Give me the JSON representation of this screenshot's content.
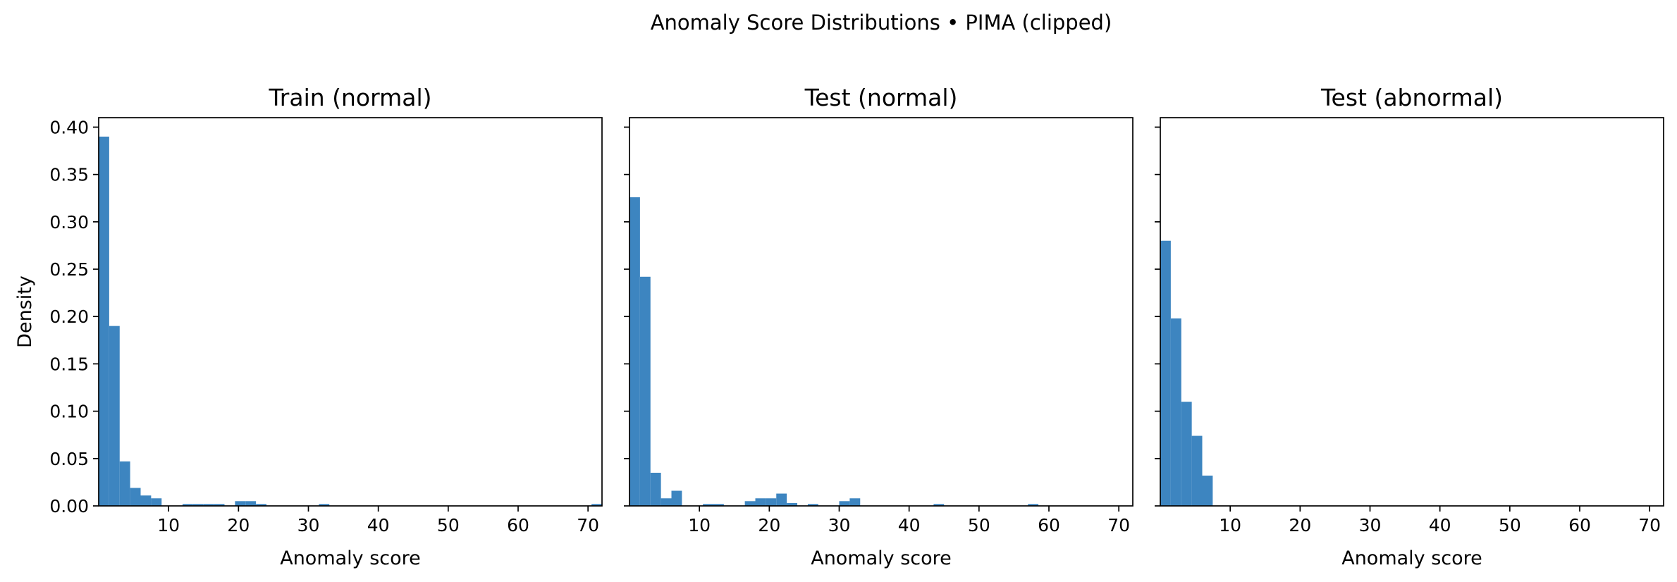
{
  "figure_title": "Anomaly Score Distributions • PIMA (clipped)",
  "chart_data": [
    {
      "type": "histogram",
      "title": "Train (normal)",
      "xlabel": "Anomaly score",
      "ylabel": "Density",
      "xlim": [
        0,
        72
      ],
      "ylim": [
        0,
        0.41
      ],
      "xticks": [
        10,
        20,
        30,
        40,
        50,
        60,
        70
      ],
      "yticks": [
        0.0,
        0.05,
        0.1,
        0.15,
        0.2,
        0.25,
        0.3,
        0.35,
        0.4
      ],
      "ytick_labels": [
        "0.00",
        "0.05",
        "0.10",
        "0.15",
        "0.20",
        "0.25",
        "0.30",
        "0.35",
        "0.40"
      ],
      "bin_width": 1.5,
      "bins": [
        {
          "x0": 0.0,
          "x1": 1.5,
          "density": 0.39
        },
        {
          "x0": 1.5,
          "x1": 3.0,
          "density": 0.19
        },
        {
          "x0": 3.0,
          "x1": 4.5,
          "density": 0.047
        },
        {
          "x0": 4.5,
          "x1": 6.0,
          "density": 0.019
        },
        {
          "x0": 6.0,
          "x1": 7.5,
          "density": 0.011
        },
        {
          "x0": 7.5,
          "x1": 9.0,
          "density": 0.008
        },
        {
          "x0": 12.0,
          "x1": 13.5,
          "density": 0.002
        },
        {
          "x0": 13.5,
          "x1": 15.0,
          "density": 0.002
        },
        {
          "x0": 15.0,
          "x1": 16.5,
          "density": 0.002
        },
        {
          "x0": 16.5,
          "x1": 18.0,
          "density": 0.002
        },
        {
          "x0": 19.5,
          "x1": 21.0,
          "density": 0.005
        },
        {
          "x0": 21.0,
          "x1": 22.5,
          "density": 0.005
        },
        {
          "x0": 22.5,
          "x1": 24.0,
          "density": 0.002
        },
        {
          "x0": 31.5,
          "x1": 33.0,
          "density": 0.002
        },
        {
          "x0": 70.5,
          "x1": 72.0,
          "density": 0.002
        }
      ]
    },
    {
      "type": "histogram",
      "title": "Test (normal)",
      "xlabel": "Anomaly score",
      "xlim": [
        0,
        72
      ],
      "ylim": [
        0,
        0.41
      ],
      "xticks": [
        10,
        20,
        30,
        40,
        50,
        60,
        70
      ],
      "bin_width": 1.5,
      "bins": [
        {
          "x0": 0.0,
          "x1": 1.5,
          "density": 0.326
        },
        {
          "x0": 1.5,
          "x1": 3.0,
          "density": 0.242
        },
        {
          "x0": 3.0,
          "x1": 4.5,
          "density": 0.035
        },
        {
          "x0": 4.5,
          "x1": 6.0,
          "density": 0.008
        },
        {
          "x0": 6.0,
          "x1": 7.5,
          "density": 0.016
        },
        {
          "x0": 10.5,
          "x1": 12.0,
          "density": 0.002
        },
        {
          "x0": 12.0,
          "x1": 13.5,
          "density": 0.002
        },
        {
          "x0": 16.5,
          "x1": 18.0,
          "density": 0.005
        },
        {
          "x0": 18.0,
          "x1": 19.5,
          "density": 0.008
        },
        {
          "x0": 19.5,
          "x1": 21.0,
          "density": 0.008
        },
        {
          "x0": 21.0,
          "x1": 22.5,
          "density": 0.013
        },
        {
          "x0": 22.5,
          "x1": 24.0,
          "density": 0.003
        },
        {
          "x0": 25.5,
          "x1": 27.0,
          "density": 0.002
        },
        {
          "x0": 30.0,
          "x1": 31.5,
          "density": 0.005
        },
        {
          "x0": 31.5,
          "x1": 33.0,
          "density": 0.008
        },
        {
          "x0": 43.5,
          "x1": 45.0,
          "density": 0.002
        },
        {
          "x0": 57.0,
          "x1": 58.5,
          "density": 0.002
        }
      ]
    },
    {
      "type": "histogram",
      "title": "Test (abnormal)",
      "xlabel": "Anomaly score",
      "xlim": [
        0,
        72
      ],
      "ylim": [
        0,
        0.41
      ],
      "xticks": [
        10,
        20,
        30,
        40,
        50,
        60,
        70
      ],
      "bin_width": 1.5,
      "bins": [
        {
          "x0": 0.0,
          "x1": 1.5,
          "density": 0.28
        },
        {
          "x0": 1.5,
          "x1": 3.0,
          "density": 0.198
        },
        {
          "x0": 3.0,
          "x1": 4.5,
          "density": 0.11
        },
        {
          "x0": 4.5,
          "x1": 6.0,
          "density": 0.074
        },
        {
          "x0": 6.0,
          "x1": 7.5,
          "density": 0.032
        }
      ]
    }
  ],
  "colors": {
    "bar": "#3d85c0",
    "axis": "#000000",
    "background": "#ffffff"
  }
}
